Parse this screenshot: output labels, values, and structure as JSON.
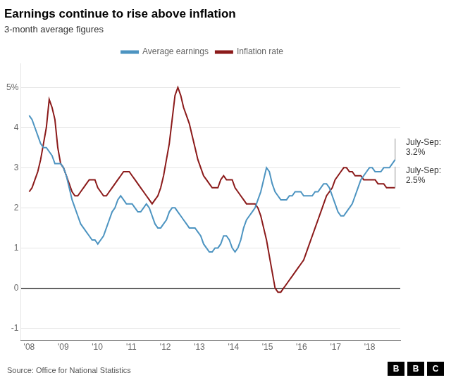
{
  "chart_data": {
    "type": "line",
    "title": "Earnings continue to rise above inflation",
    "subtitle": "3-month average figures",
    "source": "Source: Office for National Statistics",
    "logo": "BBC",
    "x": [
      2008,
      2008.083984375,
      2008.16796875,
      2008.251953125,
      2008.3359375,
      2008.419921875,
      2008.50390625,
      2008.587890625,
      2008.671875,
      2008.755859375,
      2008.83984375,
      2008.923828125,
      2009.0078125,
      2009.091796875,
      2009.17578125,
      2009.259765625,
      2009.34375,
      2009.427734375,
      2009.51171875,
      2009.595703125,
      2009.6796875,
      2009.763671875,
      2009.84765625,
      2009.931640625,
      2010.015625,
      2010.099609375,
      2010.18359375,
      2010.267578125,
      2010.3515625,
      2010.435546875,
      2010.51953125,
      2010.603515625,
      2010.6875,
      2010.771484375,
      2010.85546875,
      2010.939453125,
      2011.0234375,
      2011.107421875,
      2011.19140625,
      2011.275390625,
      2011.359375,
      2011.443359375,
      2011.52734375,
      2011.611328125,
      2011.6953125,
      2011.779296875,
      2011.86328125,
      2011.947265625,
      2012.03125,
      2012.115234375,
      2012.19921875,
      2012.283203125,
      2012.3671875,
      2012.451171875,
      2012.53515625,
      2012.619140625,
      2012.703125,
      2012.787109375,
      2012.87109375,
      2012.955078125,
      2013.0390625,
      2013.123046875,
      2013.20703125,
      2013.291015625,
      2013.375,
      2013.458984375,
      2013.54296875,
      2013.626953125,
      2013.7109375,
      2013.794921875,
      2013.87890625,
      2013.962890625,
      2014.046875,
      2014.130859375,
      2014.21484375,
      2014.298828125,
      2014.3828125,
      2014.466796875,
      2014.55078125,
      2014.634765625,
      2014.71875,
      2014.802734375,
      2014.88671875,
      2014.970703125,
      2015.0546875,
      2015.138671875,
      2015.22265625,
      2015.306640625,
      2015.390625,
      2015.474609375,
      2015.55859375,
      2015.642578125,
      2015.7265625,
      2015.810546875,
      2015.89453125,
      2015.978515625,
      2016.0625,
      2016.146484375,
      2016.23046875,
      2016.314453125,
      2016.3984375,
      2016.482421875,
      2016.56640625,
      2016.650390625,
      2016.734375,
      2016.818359375,
      2016.90234375,
      2016.986328125,
      2017.0703125,
      2017.154296875,
      2017.23828125,
      2017.322265625,
      2017.40625,
      2017.490234375,
      2017.57421875,
      2017.658203125,
      2017.7421875,
      2017.826171875,
      2017.91015625,
      2017.994140625,
      2018.078125,
      2018.162109375,
      2018.24609375,
      2018.330078125,
      2018.4140625,
      2018.498046875,
      2018.58203125,
      2018.666015625,
      2018.75
    ],
    "series": [
      {
        "name": "Average earnings",
        "color": "#4d94c1",
        "values": [
          4.3,
          4.2,
          4.0,
          3.8,
          3.6,
          3.5,
          3.5,
          3.4,
          3.3,
          3.1,
          3.1,
          3.1,
          3.0,
          2.8,
          2.5,
          2.2,
          2.0,
          1.8,
          1.6,
          1.5,
          1.4,
          1.3,
          1.2,
          1.2,
          1.1,
          1.2,
          1.3,
          1.5,
          1.7,
          1.9,
          2.0,
          2.2,
          2.3,
          2.2,
          2.1,
          2.1,
          2.1,
          2.0,
          1.9,
          1.9,
          2.0,
          2.1,
          2.0,
          1.8,
          1.6,
          1.5,
          1.5,
          1.6,
          1.7,
          1.9,
          2.0,
          2.0,
          1.9,
          1.8,
          1.7,
          1.6,
          1.5,
          1.5,
          1.5,
          1.4,
          1.3,
          1.1,
          1.0,
          0.9,
          0.9,
          1.0,
          1.0,
          1.1,
          1.3,
          1.3,
          1.2,
          1.0,
          0.9,
          1.0,
          1.2,
          1.5,
          1.7,
          1.8,
          1.9,
          2.0,
          2.2,
          2.4,
          2.7,
          3.0,
          2.9,
          2.6,
          2.4,
          2.3,
          2.2,
          2.2,
          2.2,
          2.3,
          2.3,
          2.4,
          2.4,
          2.4,
          2.3,
          2.3,
          2.3,
          2.3,
          2.4,
          2.4,
          2.5,
          2.6,
          2.6,
          2.5,
          2.3,
          2.1,
          1.9,
          1.8,
          1.8,
          1.9,
          2.0,
          2.1,
          2.3,
          2.5,
          2.7,
          2.8,
          2.9,
          3.0,
          3.0,
          2.9,
          2.9,
          2.9,
          3.0,
          3.0,
          3.0,
          3.1,
          3.2
        ]
      },
      {
        "name": "Inflation rate",
        "color": "#8b1a1a",
        "values": [
          2.4,
          2.5,
          2.7,
          2.9,
          3.2,
          3.6,
          4.0,
          4.7,
          4.5,
          4.2,
          3.5,
          3.1,
          3.0,
          2.8,
          2.6,
          2.4,
          2.3,
          2.3,
          2.4,
          2.5,
          2.6,
          2.7,
          2.7,
          2.7,
          2.5,
          2.4,
          2.3,
          2.3,
          2.4,
          2.5,
          2.6,
          2.7,
          2.8,
          2.9,
          2.9,
          2.9,
          2.8,
          2.7,
          2.6,
          2.5,
          2.4,
          2.3,
          2.2,
          2.1,
          2.2,
          2.3,
          2.5,
          2.8,
          3.2,
          3.6,
          4.2,
          4.8,
          5.0,
          4.8,
          4.5,
          4.3,
          4.1,
          3.8,
          3.5,
          3.2,
          3.0,
          2.8,
          2.7,
          2.6,
          2.5,
          2.5,
          2.5,
          2.7,
          2.8,
          2.7,
          2.7,
          2.7,
          2.5,
          2.4,
          2.3,
          2.2,
          2.1,
          2.1,
          2.1,
          2.1,
          2.0,
          1.8,
          1.5,
          1.2,
          0.8,
          0.4,
          0.0,
          -0.1,
          -0.1,
          0.0,
          0.1,
          0.2,
          0.3,
          0.4,
          0.5,
          0.6,
          0.7,
          0.9,
          1.1,
          1.3,
          1.5,
          1.7,
          1.9,
          2.1,
          2.3,
          2.4,
          2.5,
          2.7,
          2.8,
          2.9,
          3.0,
          3.0,
          2.9,
          2.9,
          2.8,
          2.8,
          2.8,
          2.7,
          2.7,
          2.7,
          2.7,
          2.7,
          2.6,
          2.6,
          2.6,
          2.5,
          2.5,
          2.5,
          2.5
        ]
      }
    ],
    "xlim": [
      2007.75,
      2018.9
    ],
    "xticks": [
      {
        "value": 2008,
        "label": "'08"
      },
      {
        "value": 2009,
        "label": "'09"
      },
      {
        "value": 2010,
        "label": "'10"
      },
      {
        "value": 2011,
        "label": "'11"
      },
      {
        "value": 2012,
        "label": "'12"
      },
      {
        "value": 2013,
        "label": "'13"
      },
      {
        "value": 2014,
        "label": "'14"
      },
      {
        "value": 2015,
        "label": "'15"
      },
      {
        "value": 2016,
        "label": "'16"
      },
      {
        "value": 2017,
        "label": "'17"
      },
      {
        "value": 2018,
        "label": "'18"
      }
    ],
    "ylim": [
      -1.3,
      5.6
    ],
    "yticks": [
      -1,
      0,
      1,
      2,
      3,
      4,
      {
        "value": 5,
        "label": "5%"
      }
    ],
    "grid": "y",
    "legend": "top",
    "annotations": [
      {
        "x": 2018.75,
        "y": 3.2,
        "text": [
          "July-Sep:",
          "3.2%"
        ]
      },
      {
        "x": 2018.75,
        "y": 2.5,
        "text": [
          "July-Sep:",
          "2.5%"
        ]
      }
    ]
  }
}
